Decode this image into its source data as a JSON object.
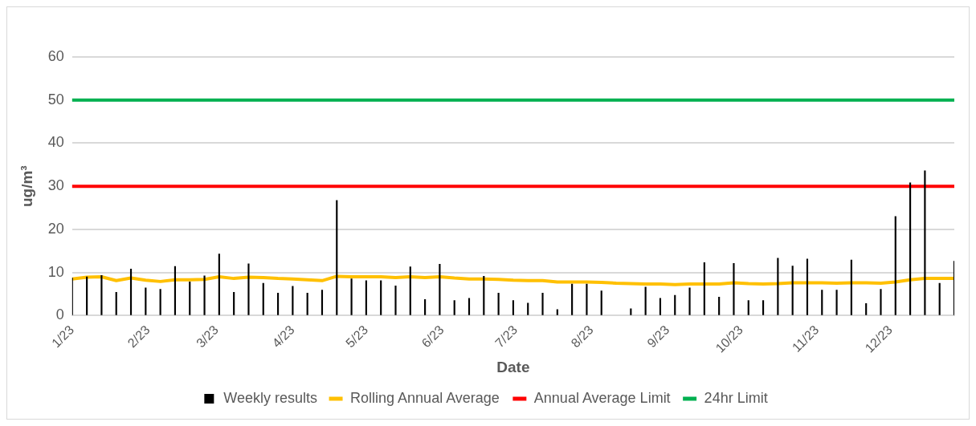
{
  "chart_data": {
    "type": "bar",
    "xlabel": "Date",
    "ylabel": "ug/m³",
    "x": [
      "2023-01-01",
      "2023-01-07",
      "2023-01-13",
      "2023-01-19",
      "2023-01-25",
      "2023-01-31",
      "2023-02-06",
      "2023-02-12",
      "2023-02-18",
      "2023-02-24",
      "2023-03-02",
      "2023-03-08",
      "2023-03-14",
      "2023-03-20",
      "2023-03-26",
      "2023-04-01",
      "2023-04-07",
      "2023-04-13",
      "2023-04-19",
      "2023-04-25",
      "2023-05-01",
      "2023-05-07",
      "2023-05-13",
      "2023-05-19",
      "2023-05-25",
      "2023-05-31",
      "2023-06-06",
      "2023-06-12",
      "2023-06-18",
      "2023-06-24",
      "2023-06-30",
      "2023-07-06",
      "2023-07-12",
      "2023-07-18",
      "2023-07-24",
      "2023-07-30",
      "2023-08-05",
      "2023-08-11",
      "2023-08-17",
      "2023-08-23",
      "2023-08-29",
      "2023-09-04",
      "2023-09-10",
      "2023-09-16",
      "2023-09-22",
      "2023-09-28",
      "2023-10-04",
      "2023-10-10",
      "2023-10-16",
      "2023-10-22",
      "2023-10-28",
      "2023-11-03",
      "2023-11-09",
      "2023-11-15",
      "2023-11-21",
      "2023-11-27",
      "2023-12-03",
      "2023-12-09",
      "2023-12-15",
      "2023-12-21",
      "2023-12-27"
    ],
    "series": [
      {
        "name": "Weekly results",
        "color": "#000000",
        "values": [
          8.7,
          9,
          9.3,
          5.4,
          10.8,
          6.4,
          6.1,
          11.4,
          7.8,
          9.2,
          14.3,
          5.4,
          12,
          7.5,
          5.2,
          6.8,
          5.2,
          5.9,
          26.7,
          8.5,
          8.1,
          8.1,
          6.9,
          11.3,
          3.7,
          11.9,
          3.5,
          4,
          9.1,
          5.2,
          3.5,
          2.9,
          5.2,
          1.4,
          7.3,
          7.3,
          5.7,
          null,
          1.6,
          6.6,
          4,
          4.7,
          6.4,
          12.3,
          4.3,
          12.1,
          3.5,
          3.5,
          13.3,
          11.5,
          13.1,
          5.9,
          5.9,
          12.9,
          2.8,
          6.1,
          23,
          30.8,
          33.6,
          7.5,
          12.6
        ]
      },
      {
        "name": "Rolling Annual Average",
        "type": "line",
        "color": "#ffc000",
        "values": [
          8.5,
          8.9,
          9,
          8.1,
          8.7,
          8.2,
          7.9,
          8.3,
          8.3,
          8.4,
          9,
          8.6,
          8.9,
          8.8,
          8.6,
          8.5,
          8.3,
          8.1,
          9.1,
          9,
          9,
          9,
          8.8,
          9,
          8.8,
          9,
          8.7,
          8.5,
          8.5,
          8.4,
          8.2,
          8.1,
          8.1,
          7.8,
          7.8,
          7.8,
          7.7,
          7.5,
          7.4,
          7.3,
          7.3,
          7.2,
          7.3,
          7.3,
          7.3,
          7.6,
          7.4,
          7.3,
          7.4,
          7.6,
          7.6,
          7.6,
          7.5,
          7.6,
          7.6,
          7.5,
          7.8,
          8.3,
          8.6,
          8.6,
          8.6
        ]
      },
      {
        "name": "Annual Average Limit",
        "type": "line",
        "color": "#ff0000",
        "values": [
          30,
          30,
          30,
          30,
          30,
          30,
          30,
          30,
          30,
          30,
          30,
          30,
          30,
          30,
          30,
          30,
          30,
          30,
          30,
          30,
          30,
          30,
          30,
          30,
          30,
          30,
          30,
          30,
          30,
          30,
          30,
          30,
          30,
          30,
          30,
          30,
          30,
          30,
          30,
          30,
          30,
          30,
          30,
          30,
          30,
          30,
          30,
          30,
          30,
          30,
          30,
          30,
          30,
          30,
          30,
          30,
          30,
          30,
          30,
          30,
          30
        ]
      },
      {
        "name": "24hr Limit",
        "type": "line",
        "color": "#00b050",
        "values": [
          50,
          50,
          50,
          50,
          50,
          50,
          50,
          50,
          50,
          50,
          50,
          50,
          50,
          50,
          50,
          50,
          50,
          50,
          50,
          50,
          50,
          50,
          50,
          50,
          50,
          50,
          50,
          50,
          50,
          50,
          50,
          50,
          50,
          50,
          50,
          50,
          50,
          50,
          50,
          50,
          50,
          50,
          50,
          50,
          50,
          50,
          50,
          50,
          50,
          50,
          50,
          50,
          50,
          50,
          50,
          50,
          50,
          50,
          50,
          50,
          50
        ]
      }
    ],
    "xlim": [
      "2023-01-01",
      "2023-12-27"
    ],
    "xticks": [
      {
        "value": "2023-01-01",
        "label": "1/23"
      },
      {
        "value": "2023-02-01",
        "label": "2/23"
      },
      {
        "value": "2023-03-01",
        "label": "3/23"
      },
      {
        "value": "2023-04-01",
        "label": "4/23"
      },
      {
        "value": "2023-05-01",
        "label": "5/23"
      },
      {
        "value": "2023-06-01",
        "label": "6/23"
      },
      {
        "value": "2023-07-01",
        "label": "7/23"
      },
      {
        "value": "2023-08-01",
        "label": "8/23"
      },
      {
        "value": "2023-09-01",
        "label": "9/23"
      },
      {
        "value": "2023-10-01",
        "label": "10/23"
      },
      {
        "value": "2023-11-01",
        "label": "11/23"
      },
      {
        "value": "2023-12-01",
        "label": "12/23"
      }
    ],
    "ylim": [
      0,
      60
    ],
    "yticks": [
      0,
      10,
      20,
      30,
      40,
      50,
      60
    ],
    "grid": "y",
    "legend": "bottom",
    "marker": "none",
    "line_style": "solid"
  }
}
